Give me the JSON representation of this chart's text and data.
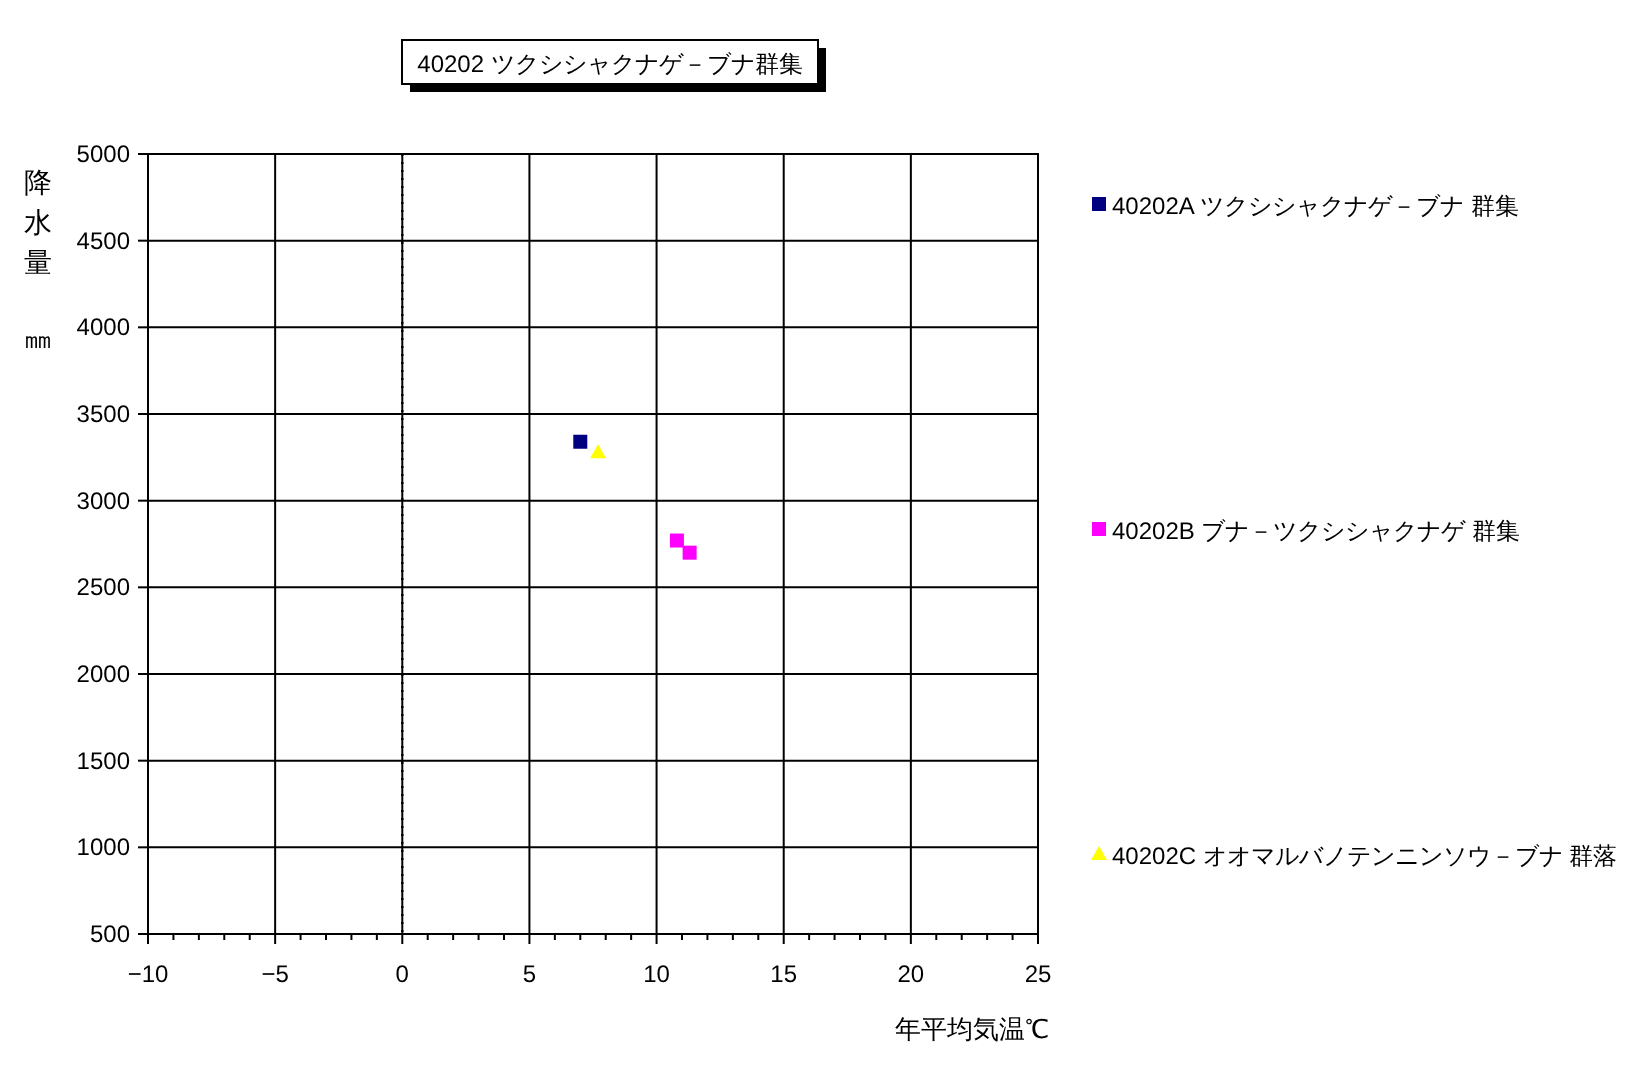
{
  "chart_data": {
    "type": "scatter",
    "title": "40202 ツクシシャクナゲ－ブナ群集",
    "xlabel": "年平均気温℃",
    "ylabel": "降水量㎜",
    "xlim": [
      -10,
      25
    ],
    "xticks": [
      -10,
      -5,
      0,
      5,
      10,
      15,
      20,
      25
    ],
    "ylim": [
      500,
      5000
    ],
    "yticks": [
      500,
      1000,
      1500,
      2000,
      2500,
      3000,
      3500,
      4000,
      4500,
      5000
    ],
    "grid": true,
    "legend": "right",
    "ref_lines": [
      {
        "axis": "x",
        "value": 0,
        "line_style": "dotted",
        "color": "#000000"
      }
    ],
    "series": [
      {
        "name": "40202A ツクシシャクナゲ－ブナ 群集",
        "color": "#000080",
        "marker": "square",
        "x": [
          7.0
        ],
        "values": [
          3340
        ]
      },
      {
        "name": "40202B ブナ－ツクシシャクナゲ 群集",
        "color": "#ff00ff",
        "marker": "square",
        "x": [
          10.8,
          11.3
        ],
        "values": [
          2770,
          2700
        ]
      },
      {
        "name": "40202C オオマルバノテンニンソウ－ブナ 群落",
        "color": "#ffff00",
        "marker": "triangle",
        "x": [
          7.7
        ],
        "values": [
          3280
        ]
      }
    ]
  }
}
